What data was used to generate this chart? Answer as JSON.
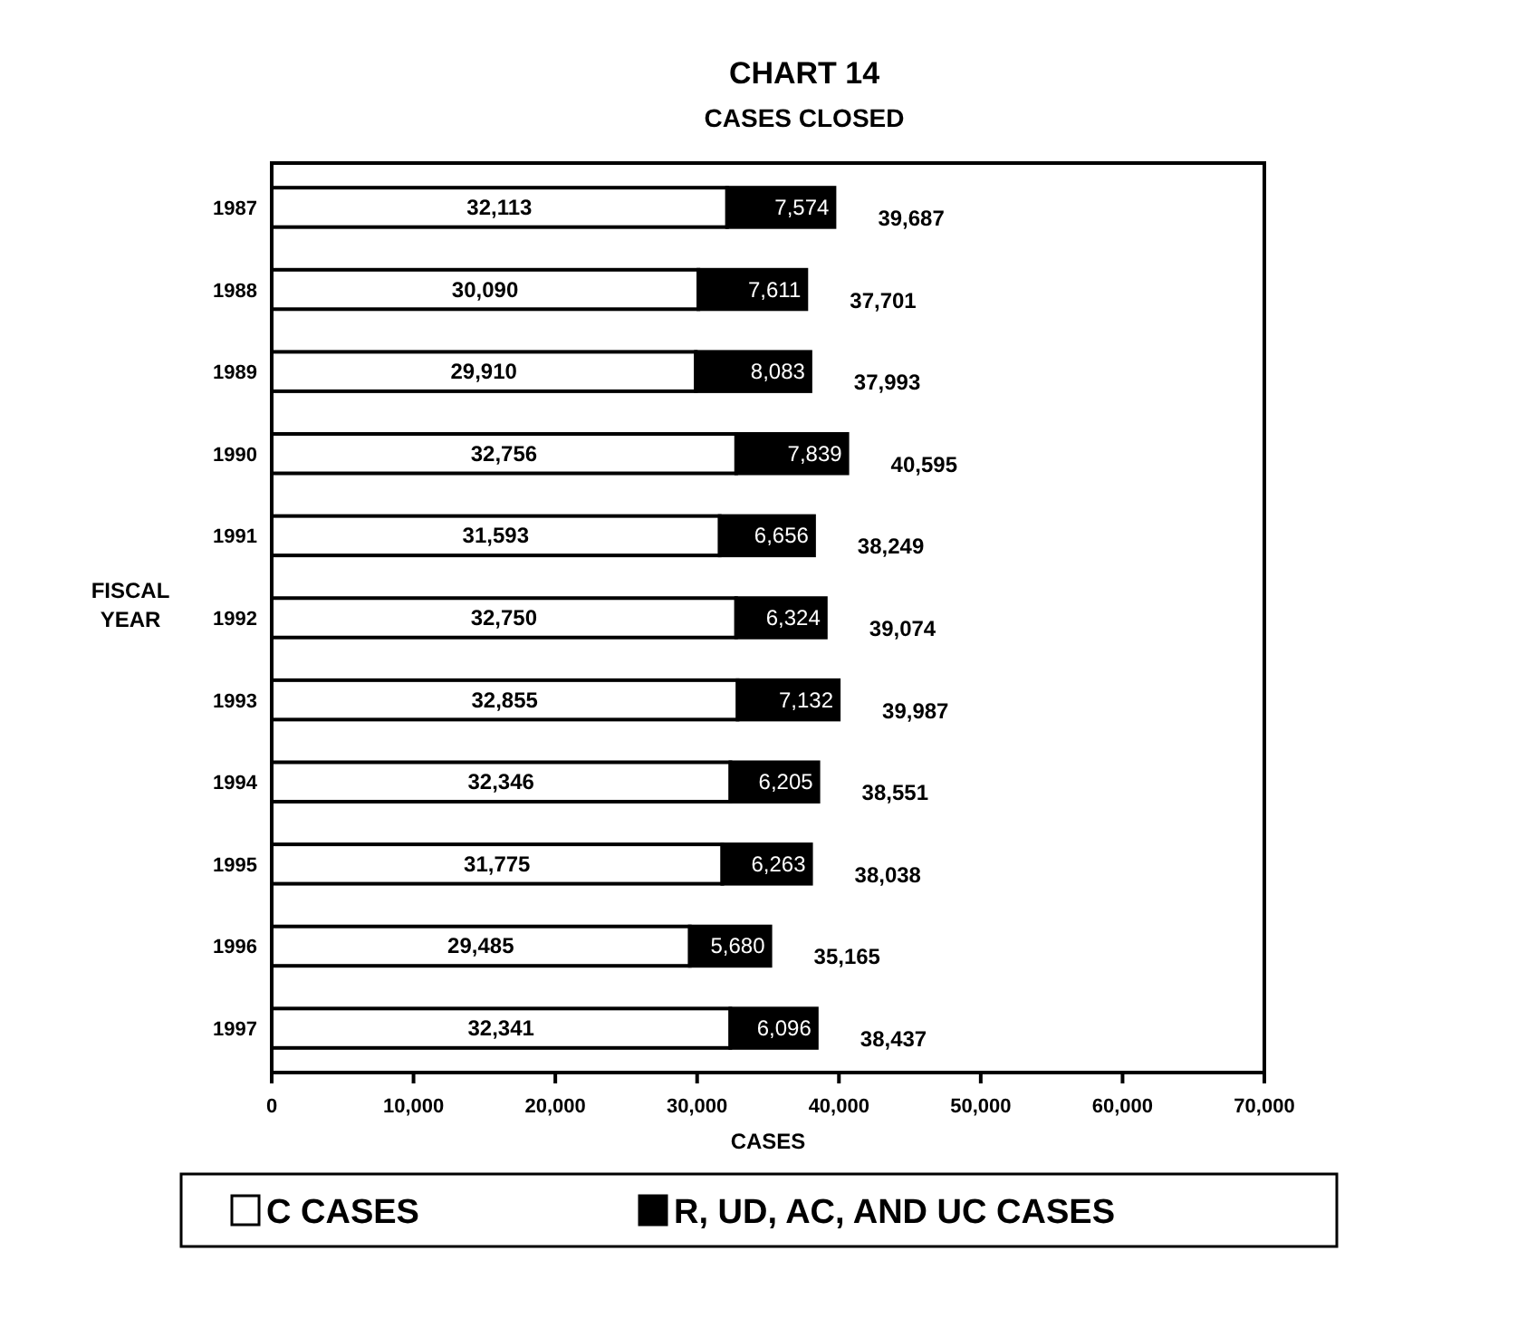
{
  "chart_data": {
    "type": "bar",
    "orientation": "horizontal",
    "stacked": true,
    "title": "CHART 14",
    "subtitle": "CASES CLOSED",
    "xlabel": "CASES",
    "ylabel": "FISCAL YEAR",
    "categories": [
      "1987",
      "1988",
      "1989",
      "1990",
      "1991",
      "1992",
      "1993",
      "1994",
      "1995",
      "1996",
      "1997"
    ],
    "series": [
      {
        "name": "C CASES",
        "color": "#ffffff",
        "values": [
          32113,
          30090,
          29910,
          32756,
          31593,
          32750,
          32855,
          32346,
          31775,
          29485,
          32341
        ],
        "value_labels": [
          "32,113",
          "30,090",
          "29,910",
          "32,756",
          "31,593",
          "32,750",
          "32,855",
          "32,346",
          "31,775",
          "29,485",
          "32,341"
        ]
      },
      {
        "name": "R, UD, AC, AND UC CASES",
        "color": "#000000",
        "values": [
          7574,
          7611,
          8083,
          7839,
          6656,
          6324,
          7132,
          6205,
          6263,
          5680,
          6096
        ],
        "value_labels": [
          "7,574",
          "7,611",
          "8,083",
          "7,839",
          "6,656",
          "6,324",
          "7,132",
          "6,205",
          "6,263",
          "5,680",
          "6,096"
        ]
      }
    ],
    "totals": [
      "39,687",
      "37,701",
      "37,993",
      "40,595",
      "38,249",
      "39,074",
      "39,987",
      "38,551",
      "38,038",
      "35,165",
      "38,437"
    ],
    "xlim": [
      0,
      70000
    ],
    "xticks": [
      {
        "value": 0,
        "label": "0"
      },
      {
        "value": 10000,
        "label": "10,000"
      },
      {
        "value": 20000,
        "label": "20,000"
      },
      {
        "value": 30000,
        "label": "30,000"
      },
      {
        "value": 40000,
        "label": "40,000"
      },
      {
        "value": 50000,
        "label": "50,000"
      },
      {
        "value": 60000,
        "label": "60,000"
      },
      {
        "value": 70000,
        "label": "70,000"
      }
    ],
    "grid": false,
    "legend": "bottom"
  }
}
